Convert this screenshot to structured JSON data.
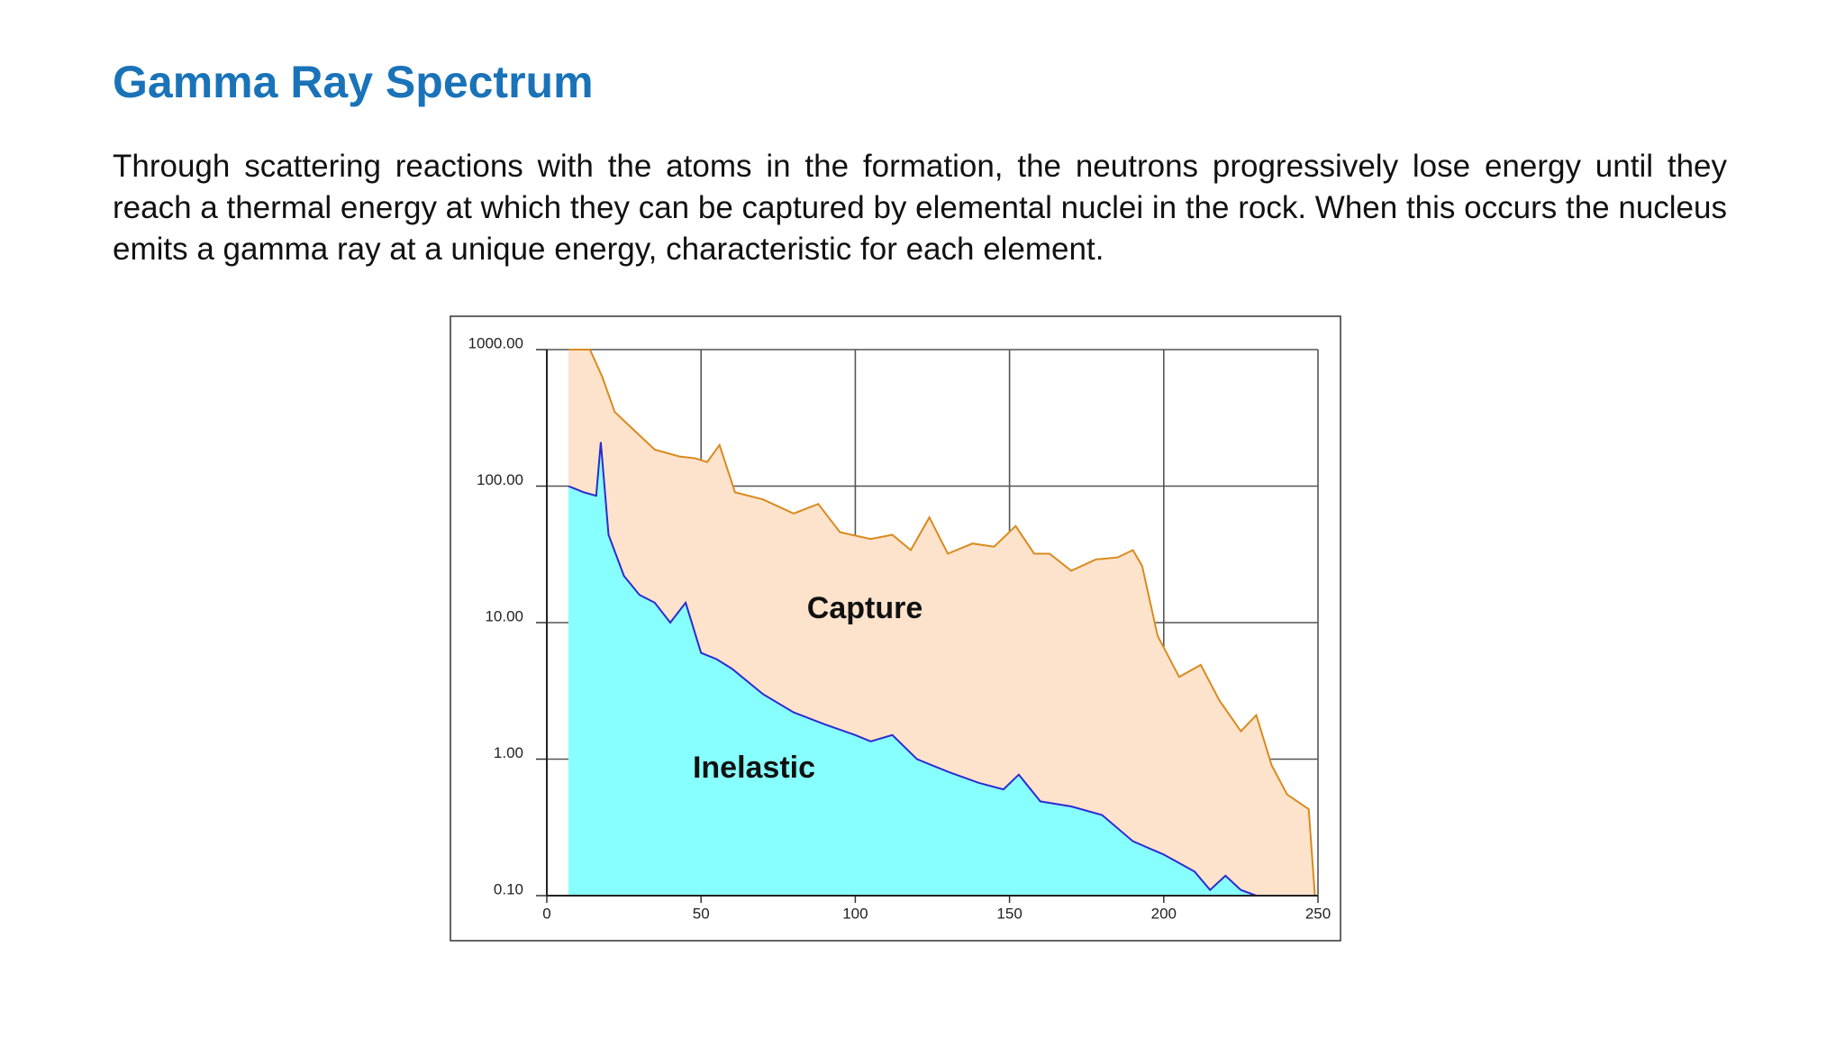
{
  "header": {
    "title": "Gamma Ray Spectrum"
  },
  "paragraph": "Through scattering reactions with the atoms in the formation, the neutrons progressively lose energy until they reach a thermal energy at which they can be captured by elemental nuclei in the rock. When this occurs the nucleus emits a gamma ray at a unique energy, characteristic for each element.",
  "chart_data": {
    "type": "area",
    "log_y": true,
    "grid": true,
    "xlim": [
      0,
      250
    ],
    "xticks": [
      0,
      50,
      100,
      150,
      200,
      250
    ],
    "ylim": [
      0.1,
      1000
    ],
    "yticks": [
      {
        "value": 0.1,
        "label": "0.10"
      },
      {
        "value": 1,
        "label": "1.00"
      },
      {
        "value": 10,
        "label": "10.00"
      },
      {
        "value": 100,
        "label": "100.00"
      },
      {
        "value": 1000,
        "label": "1000.00"
      }
    ],
    "series": [
      {
        "name": "Capture",
        "color": "#fde3cc",
        "line_color": "#d98a1e",
        "x": [
          7,
          14,
          18,
          22,
          28,
          35,
          43,
          48,
          52,
          56,
          61,
          70,
          80,
          88,
          95,
          105,
          112,
          118,
          124,
          130,
          138,
          145,
          152,
          158,
          163,
          170,
          178,
          185,
          190,
          193,
          198,
          205,
          212,
          218,
          225,
          230,
          235,
          240,
          247,
          249
        ],
        "values": [
          1000,
          1000,
          630,
          350,
          260,
          185,
          165,
          160,
          150,
          200,
          90,
          80,
          63,
          74,
          46,
          41,
          44,
          34,
          59,
          32,
          38,
          36,
          51,
          32,
          32,
          24,
          29,
          30,
          34,
          26,
          8,
          4,
          4.9,
          2.7,
          1.6,
          2.1,
          0.9,
          0.55,
          0.43,
          0.1
        ]
      },
      {
        "name": "Inelastic",
        "color": "#88ffff",
        "line_color": "#2b2bd0",
        "x": [
          7,
          12,
          16,
          17.5,
          20,
          25,
          30,
          35,
          40,
          45,
          50,
          55,
          60,
          70,
          80,
          90,
          100,
          105,
          112,
          120,
          130,
          140,
          148,
          153,
          160,
          170,
          180,
          190,
          200,
          210,
          215,
          220,
          225,
          230
        ],
        "values": [
          100,
          90,
          85,
          210,
          44,
          22,
          16,
          14,
          10,
          14,
          6,
          5.4,
          4.6,
          3,
          2.2,
          1.8,
          1.5,
          1.35,
          1.5,
          1,
          0.81,
          0.67,
          0.6,
          0.77,
          0.49,
          0.45,
          0.39,
          0.25,
          0.2,
          0.15,
          0.11,
          0.14,
          0.11,
          0.1
        ]
      }
    ]
  }
}
